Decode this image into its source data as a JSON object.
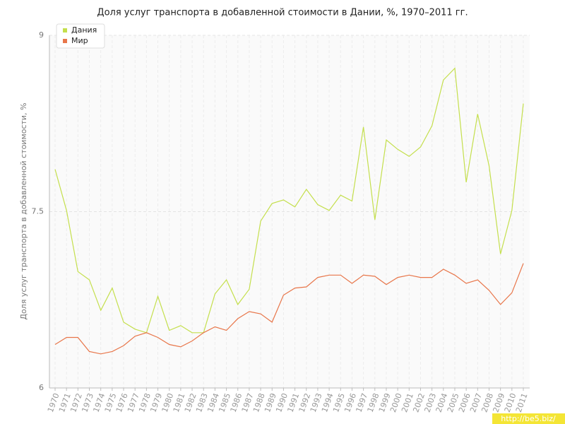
{
  "chart_data": {
    "type": "line",
    "title": "Доля услуг транспорта в добавленной стоимости в Дании, %, 1970–2011 гг.",
    "y_label": "Доля услуг транспорта в добавленной стоимости, %",
    "watermark": "http://be5.biz/",
    "categories": [
      "1970",
      "1971",
      "1972",
      "1973",
      "1974",
      "1975",
      "1976",
      "1977",
      "1978",
      "1979",
      "1980",
      "1981",
      "1982",
      "1983",
      "1984",
      "1985",
      "1986",
      "1987",
      "1988",
      "1989",
      "1990",
      "1991",
      "1992",
      "1993",
      "1994",
      "1995",
      "1996",
      "1997",
      "1998",
      "1999",
      "2000",
      "2001",
      "2002",
      "2003",
      "2004",
      "2005",
      "2006",
      "2007",
      "2008",
      "2009",
      "2010",
      "2011"
    ],
    "series": [
      {
        "name": "Дания",
        "color": "#c4df4c",
        "values": [
          7.86,
          7.51,
          6.99,
          6.92,
          6.66,
          6.85,
          6.56,
          6.5,
          6.47,
          6.78,
          6.49,
          6.53,
          6.47,
          6.47,
          6.8,
          6.92,
          6.71,
          6.84,
          7.42,
          7.57,
          7.6,
          7.54,
          7.69,
          7.56,
          7.51,
          7.64,
          7.59,
          8.22,
          7.43,
          8.11,
          8.03,
          7.97,
          8.05,
          8.23,
          8.62,
          8.72,
          7.75,
          8.33,
          7.89,
          7.14,
          7.51,
          8.42
        ]
      },
      {
        "name": "Мир",
        "color": "#e8764a",
        "values": [
          6.37,
          6.43,
          6.43,
          6.31,
          6.29,
          6.31,
          6.36,
          6.44,
          6.47,
          6.43,
          6.37,
          6.35,
          6.4,
          6.47,
          6.52,
          6.49,
          6.59,
          6.65,
          6.63,
          6.56,
          6.79,
          6.85,
          6.86,
          6.94,
          6.96,
          6.96,
          6.89,
          6.96,
          6.95,
          6.88,
          6.94,
          6.96,
          6.94,
          6.94,
          7.01,
          6.96,
          6.89,
          6.92,
          6.83,
          6.71,
          6.81,
          7.06
        ]
      }
    ],
    "ylim": [
      6,
      9
    ],
    "yticks": [
      6,
      7.5,
      9
    ],
    "grid": true,
    "legend": "top-left"
  }
}
